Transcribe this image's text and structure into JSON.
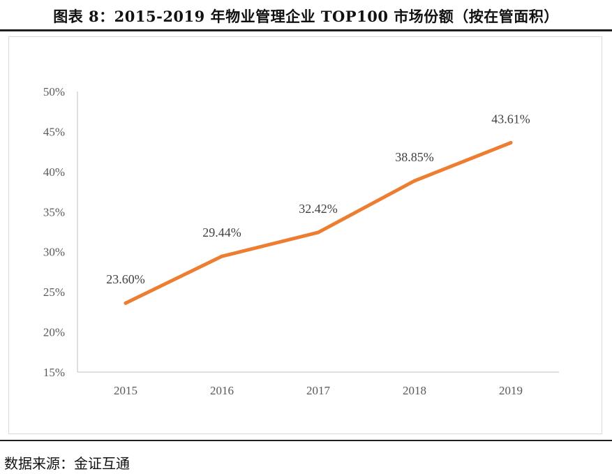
{
  "figure": {
    "title": "图表 8：2015-2019 年物业管理企业 TOP100 市场份额（按在管面积）",
    "source": "数据来源：金证互通"
  },
  "colors": {
    "line": "#ED7D31",
    "axis": "#bfbfbf",
    "tick_text": "#595959",
    "data_label": "#404040"
  },
  "chart_data": {
    "type": "line",
    "categories": [
      "2015",
      "2016",
      "2017",
      "2018",
      "2019"
    ],
    "series": [
      {
        "values": [
          23.6,
          29.44,
          32.42,
          38.85,
          43.61
        ],
        "labels": [
          "23.60%",
          "29.44%",
          "32.42%",
          "38.85%",
          "43.61%"
        ]
      }
    ],
    "y_ticks": [
      "15%",
      "20%",
      "25%",
      "30%",
      "35%",
      "40%",
      "45%",
      "50%"
    ],
    "ylim": [
      15,
      50
    ],
    "grid": false,
    "legend": "none"
  }
}
